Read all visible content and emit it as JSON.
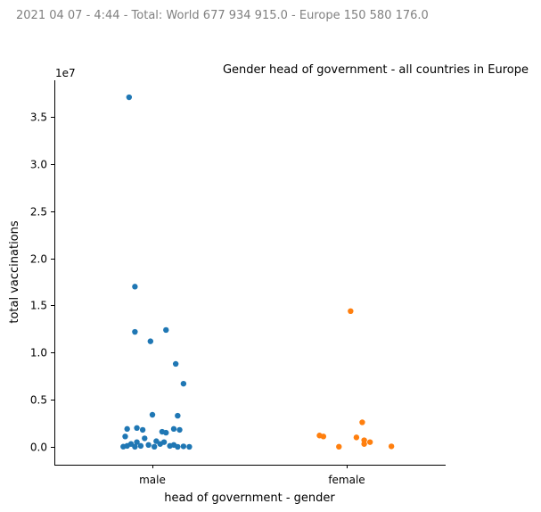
{
  "header_text": "2021 04 07 - 4:44 - Total: World 677 934 915.0 - Europe 150 580 176.0",
  "chart_data": {
    "type": "scatter",
    "title": "Gender head of government - all countries in Europe",
    "xlabel": "head of government - gender",
    "ylabel": "total vaccinations",
    "y_offset_label": "1e7",
    "categories": [
      "male",
      "female"
    ],
    "ylim": [
      -1900000,
      38900000
    ],
    "y_ticks": [
      0,
      5000000,
      10000000,
      15000000,
      20000000,
      25000000,
      30000000,
      35000000
    ],
    "y_tick_labels": [
      "0.0",
      "0.5",
      "1.0",
      "1.5",
      "2.0",
      "2.5",
      "3.0",
      "3.5"
    ],
    "legend": "none",
    "grid": false,
    "series": [
      {
        "category": "male",
        "color": "#1f77b4",
        "values": [
          37100000,
          17000000,
          12400000,
          12200000,
          11200000,
          8800000,
          6700000,
          3400000,
          3300000,
          2000000,
          1900000,
          1900000,
          1800000,
          1800000,
          1600000,
          1500000,
          1100000,
          900000,
          600000,
          500000,
          500000,
          300000,
          300000,
          200000,
          200000,
          100000,
          100000,
          100000,
          50000,
          20000,
          10000,
          5000,
          0,
          0
        ],
        "jitter": [
          -0.12,
          -0.09,
          0.07,
          -0.09,
          -0.01,
          0.12,
          0.16,
          0.0,
          0.13,
          -0.08,
          -0.13,
          0.11,
          -0.05,
          0.14,
          0.05,
          0.07,
          -0.14,
          -0.04,
          0.02,
          0.06,
          -0.08,
          -0.11,
          0.04,
          0.11,
          -0.02,
          -0.13,
          0.09,
          -0.06,
          0.16,
          -0.15,
          0.01,
          -0.09,
          0.13,
          0.19
        ]
      },
      {
        "category": "female",
        "color": "#ff7f0e",
        "values": [
          14400000,
          2600000,
          1200000,
          1100000,
          1000000,
          700000,
          500000,
          300000,
          50000,
          10000
        ],
        "jitter": [
          0.02,
          0.08,
          -0.14,
          -0.12,
          0.05,
          0.09,
          0.12,
          0.09,
          0.23,
          -0.04
        ]
      }
    ]
  }
}
